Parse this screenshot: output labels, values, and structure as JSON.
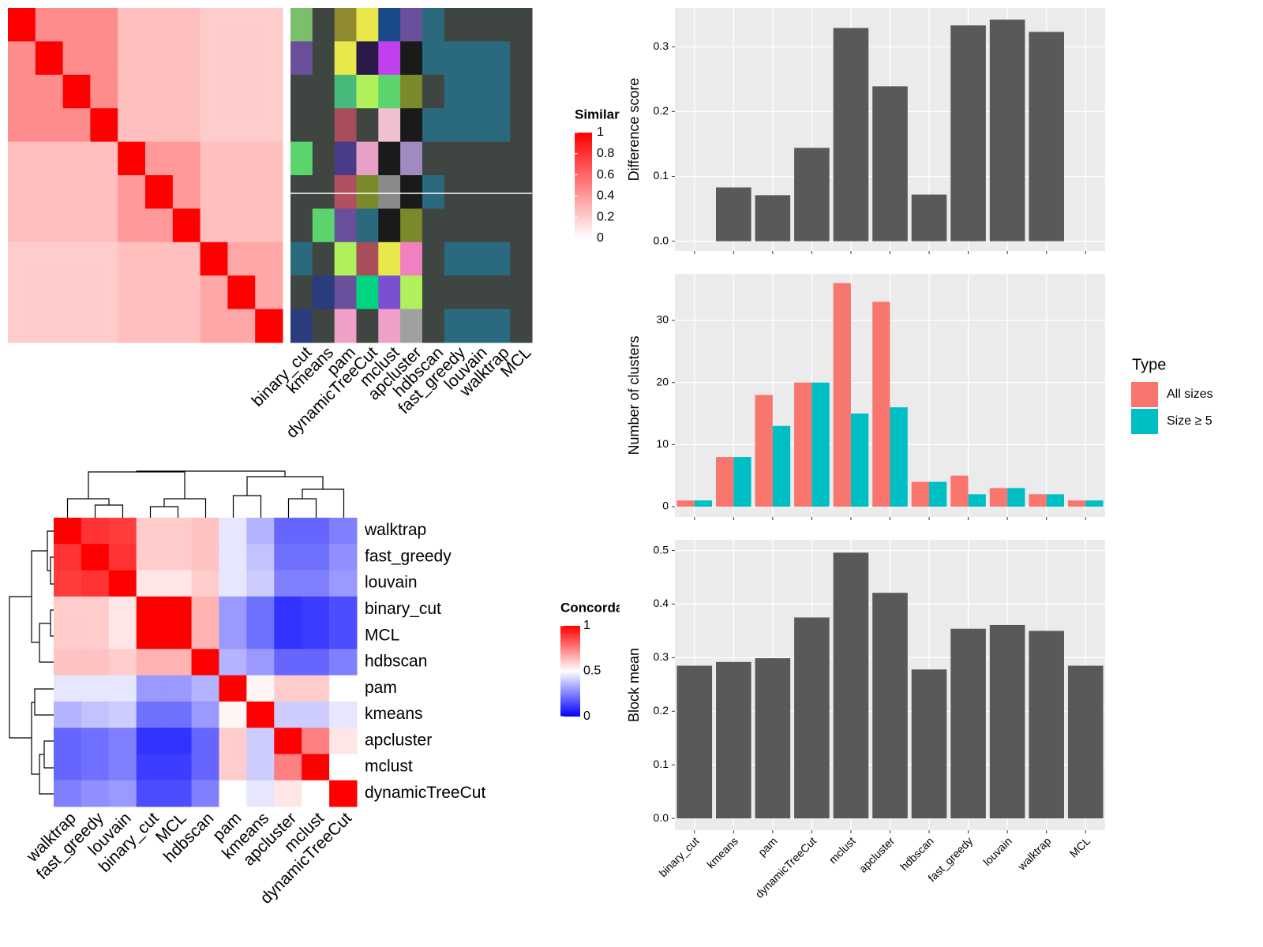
{
  "chart_data": [
    {
      "type": "heatmap",
      "legend_title": "Similarity",
      "legend_ticks": [
        0,
        0.2,
        0.4,
        0.6,
        0.8,
        1
      ],
      "values": [
        [
          1,
          0.45,
          0.45,
          0.45,
          0.25,
          0.25,
          0.25,
          0.2,
          0.2,
          0.2
        ],
        [
          0.45,
          1,
          0.45,
          0.45,
          0.25,
          0.25,
          0.25,
          0.2,
          0.2,
          0.2
        ],
        [
          0.45,
          0.45,
          1,
          0.45,
          0.25,
          0.25,
          0.25,
          0.2,
          0.2,
          0.2
        ],
        [
          0.45,
          0.45,
          0.45,
          1,
          0.25,
          0.25,
          0.25,
          0.2,
          0.2,
          0.2
        ],
        [
          0.25,
          0.25,
          0.25,
          0.25,
          1,
          0.4,
          0.4,
          0.25,
          0.25,
          0.25
        ],
        [
          0.25,
          0.25,
          0.25,
          0.25,
          0.4,
          1,
          0.4,
          0.25,
          0.25,
          0.25
        ],
        [
          0.25,
          0.25,
          0.25,
          0.25,
          0.4,
          0.4,
          1,
          0.25,
          0.25,
          0.25
        ],
        [
          0.2,
          0.2,
          0.2,
          0.2,
          0.25,
          0.25,
          0.25,
          1,
          0.35,
          0.35
        ],
        [
          0.2,
          0.2,
          0.2,
          0.2,
          0.25,
          0.25,
          0.25,
          0.35,
          1,
          0.35
        ],
        [
          0.2,
          0.2,
          0.2,
          0.2,
          0.25,
          0.25,
          0.25,
          0.35,
          0.35,
          1
        ]
      ]
    },
    {
      "type": "class-labels",
      "columns": [
        "binary_cut",
        "kmeans",
        "pam",
        "dynamicTreeCut",
        "mclust",
        "apcluster",
        "hdbscan",
        "fast_greedy",
        "louvain",
        "walktrap",
        "MCL"
      ],
      "colors": [
        [
          "#7cbf6a",
          "#6a4f9a",
          "#3f4540",
          "#3f4540",
          "#5cd46e",
          "#3f4540",
          "#3f4540",
          "#2b6a7e",
          "#3f4540",
          "#2a3c7e"
        ],
        [
          "#3f4540",
          "#3f4540",
          "#3f4540",
          "#3f4540",
          "#3f4540",
          "#3f4540",
          "#5cd46e",
          "#3f4540",
          "#2a3c7e",
          "#3f4540"
        ],
        [
          "#8f8a2e",
          "#e8e84a",
          "#45ba7a",
          "#a84e5a",
          "#4a3a8a",
          "#b05060",
          "#6a4f9a",
          "#b0f05a",
          "#6a4f9a",
          "#f0a0c8"
        ],
        [
          "#e8e84a",
          "#2a1a4a",
          "#b0f05a",
          "#3f4540",
          "#e8a0c8",
          "#7a8a2a",
          "#2b6a7e",
          "#a84e5a",
          "#00d480",
          "#3f4540"
        ],
        [
          "#1a4a8a",
          "#c040f0",
          "#5cd46e",
          "#f0c0d0",
          "#1a1a1a",
          "#8a8a8a",
          "#1a1a1a",
          "#e8e84a",
          "#7a50d0",
          "#f0a0c8"
        ],
        [
          "#6a4f9a",
          "#1a1a1a",
          "#7a8a2a",
          "#1a1a1a",
          "#a08ac0",
          "#1a1a1a",
          "#7a8a2a",
          "#f080c0",
          "#b0f05a",
          "#a0a0a0"
        ],
        [
          "#2b6a7e",
          "#2b6a7e",
          "#3f4540",
          "#2b6a7e",
          "#3f4540",
          "#2b6a7e",
          "#3f4540",
          "#3f4540",
          "#3f4540",
          "#3f4540"
        ],
        [
          "#3f4540",
          "#2b6a7e",
          "#2b6a7e",
          "#2b6a7e",
          "#3f4540",
          "#3f4540",
          "#3f4540",
          "#2b6a7e",
          "#3f4540",
          "#2b6a7e"
        ],
        [
          "#3f4540",
          "#2b6a7e",
          "#2b6a7e",
          "#2b6a7e",
          "#3f4540",
          "#3f4540",
          "#3f4540",
          "#2b6a7e",
          "#3f4540",
          "#2b6a7e"
        ],
        [
          "#3f4540",
          "#2b6a7e",
          "#2b6a7e",
          "#2b6a7e",
          "#3f4540",
          "#3f4540",
          "#3f4540",
          "#2b6a7e",
          "#3f4540",
          "#2b6a7e"
        ],
        [
          "#3f4540",
          "#3f4540",
          "#3f4540",
          "#3f4540",
          "#3f4540",
          "#3f4540",
          "#3f4540",
          "#3f4540",
          "#3f4540",
          "#3f4540"
        ]
      ]
    },
    {
      "type": "heatmap",
      "legend_title": "Concordance",
      "legend_ticks": [
        0,
        0.5,
        1
      ],
      "rows": [
        "walktrap",
        "fast_greedy",
        "louvain",
        "binary_cut",
        "MCL",
        "hdbscan",
        "pam",
        "kmeans",
        "apcluster",
        "mclust",
        "dynamicTreeCut"
      ],
      "columns": [
        "walktrap",
        "fast_greedy",
        "louvain",
        "binary_cut",
        "MCL",
        "hdbscan",
        "pam",
        "kmeans",
        "apcluster",
        "mclust",
        "dynamicTreeCut"
      ],
      "values": [
        [
          1,
          0.9,
          0.88,
          0.6,
          0.6,
          0.62,
          0.45,
          0.35,
          0.2,
          0.2,
          0.25
        ],
        [
          0.9,
          1,
          0.9,
          0.6,
          0.6,
          0.62,
          0.45,
          0.38,
          0.22,
          0.22,
          0.28
        ],
        [
          0.88,
          0.9,
          1,
          0.55,
          0.55,
          0.6,
          0.45,
          0.4,
          0.25,
          0.25,
          0.3
        ],
        [
          0.6,
          0.6,
          0.55,
          1,
          1,
          0.65,
          0.3,
          0.22,
          0.1,
          0.12,
          0.15
        ],
        [
          0.6,
          0.6,
          0.55,
          1,
          1,
          0.65,
          0.3,
          0.22,
          0.1,
          0.12,
          0.15
        ],
        [
          0.62,
          0.62,
          0.6,
          0.65,
          0.65,
          1,
          0.35,
          0.3,
          0.2,
          0.2,
          0.25
        ],
        [
          0.45,
          0.45,
          0.45,
          0.3,
          0.3,
          0.35,
          1,
          0.52,
          0.6,
          0.6,
          0.5
        ],
        [
          0.35,
          0.38,
          0.4,
          0.22,
          0.22,
          0.3,
          0.52,
          1,
          0.4,
          0.4,
          0.45
        ],
        [
          0.2,
          0.22,
          0.25,
          0.1,
          0.1,
          0.2,
          0.6,
          0.4,
          1,
          0.75,
          0.55
        ],
        [
          0.2,
          0.22,
          0.25,
          0.12,
          0.12,
          0.2,
          0.6,
          0.4,
          0.75,
          1,
          0.5
        ],
        [
          0.25,
          0.28,
          0.3,
          0.15,
          0.15,
          0.25,
          0.5,
          0.45,
          0.55,
          0.5,
          1
        ]
      ]
    },
    {
      "type": "bar",
      "y_label": "Difference score",
      "color": "#595959",
      "values": [
        0,
        0.083,
        0.071,
        0.144,
        0.329,
        0.239,
        0.072,
        0.333,
        0.342,
        0.323,
        0
      ],
      "ylim": [
        -0.015,
        0.36
      ],
      "yticks": [
        {
          "value": 0,
          "label": "0.0"
        },
        0.1,
        0.2,
        0.3
      ]
    },
    {
      "type": "grouped-bar",
      "y_label": "Number of clusters",
      "legend_title": "Type",
      "series": [
        {
          "name": "All sizes",
          "color": "#F8766D",
          "values": [
            1,
            8,
            18,
            20,
            36,
            33,
            4,
            5,
            3,
            2,
            1
          ]
        },
        {
          "name": "Size ≥ 5",
          "color": "#00BFC4",
          "values": [
            1,
            8,
            13,
            20,
            15,
            16,
            4,
            2,
            3,
            2,
            1
          ]
        }
      ],
      "ylim": [
        -1.65,
        37.5
      ],
      "yticks": [
        0,
        10,
        20,
        30
      ]
    },
    {
      "type": "bar",
      "y_label": "Block mean",
      "color": "#595959",
      "categories": [
        "binary_cut",
        "kmeans",
        "pam",
        "dynamicTreeCut",
        "mclust",
        "apcluster",
        "hdbscan",
        "fast_greedy",
        "louvain",
        "walktrap",
        "MCL"
      ],
      "values": [
        0.285,
        0.292,
        0.299,
        0.375,
        0.496,
        0.421,
        0.278,
        0.354,
        0.361,
        0.35,
        0.285
      ],
      "ylim": [
        -0.022,
        0.52
      ],
      "yticks": [
        {
          "value": 0,
          "label": "0.0"
        },
        0.1,
        0.2,
        0.3,
        0.4,
        0.5
      ]
    }
  ]
}
